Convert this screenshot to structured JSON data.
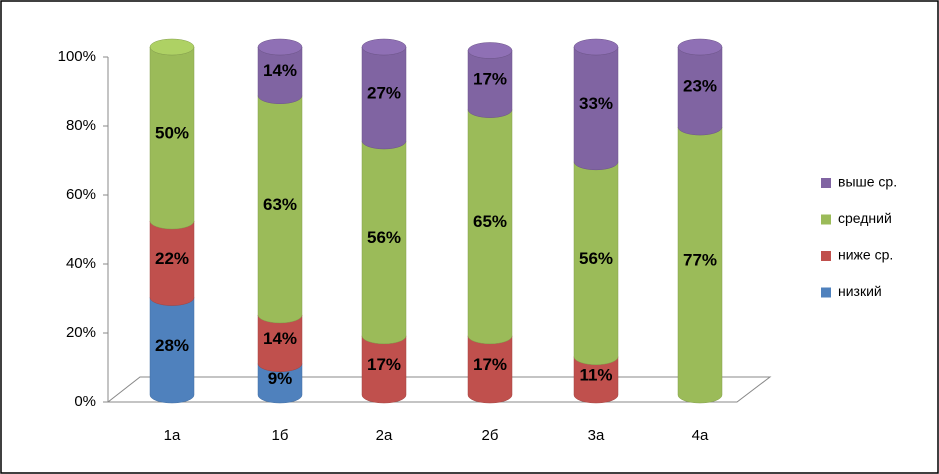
{
  "chart_data": {
    "type": "bar3d-stacked",
    "categories": [
      "1а",
      "1б",
      "2а",
      "2б",
      "3а",
      "4а"
    ],
    "series": [
      {
        "name": "низкий",
        "color": "#4f81bd",
        "values": [
          28,
          9,
          null,
          null,
          null,
          null
        ],
        "value_labels": [
          "28%",
          "9%",
          null,
          null,
          null,
          null
        ]
      },
      {
        "name": "ниже ср.",
        "color": "#c0504d",
        "values": [
          22,
          14,
          17,
          17,
          11,
          null
        ],
        "value_labels": [
          "22%",
          "14%",
          "17%",
          "17%",
          "11%",
          null
        ]
      },
      {
        "name": "средний",
        "color": "#9bbb59",
        "values": [
          50,
          63,
          56,
          65,
          56,
          77
        ],
        "value_labels": [
          "50%",
          "63%",
          "56%",
          "65%",
          "56%",
          "77%"
        ]
      },
      {
        "name": "выше ср.",
        "color": "#8064a2",
        "values": [
          null,
          14,
          27,
          17,
          33,
          23
        ],
        "value_labels": [
          null,
          "14%",
          "27%",
          "17%",
          "33%",
          "23%"
        ]
      }
    ],
    "ylim": [
      0,
      100
    ],
    "yticks": [
      {
        "value": 0,
        "label": "0%"
      },
      {
        "value": 20,
        "label": "20%"
      },
      {
        "value": 40,
        "label": "40%"
      },
      {
        "value": 60,
        "label": "60%"
      },
      {
        "value": 80,
        "label": "80%"
      },
      {
        "value": 100,
        "label": "100%"
      }
    ],
    "legend": "right"
  }
}
